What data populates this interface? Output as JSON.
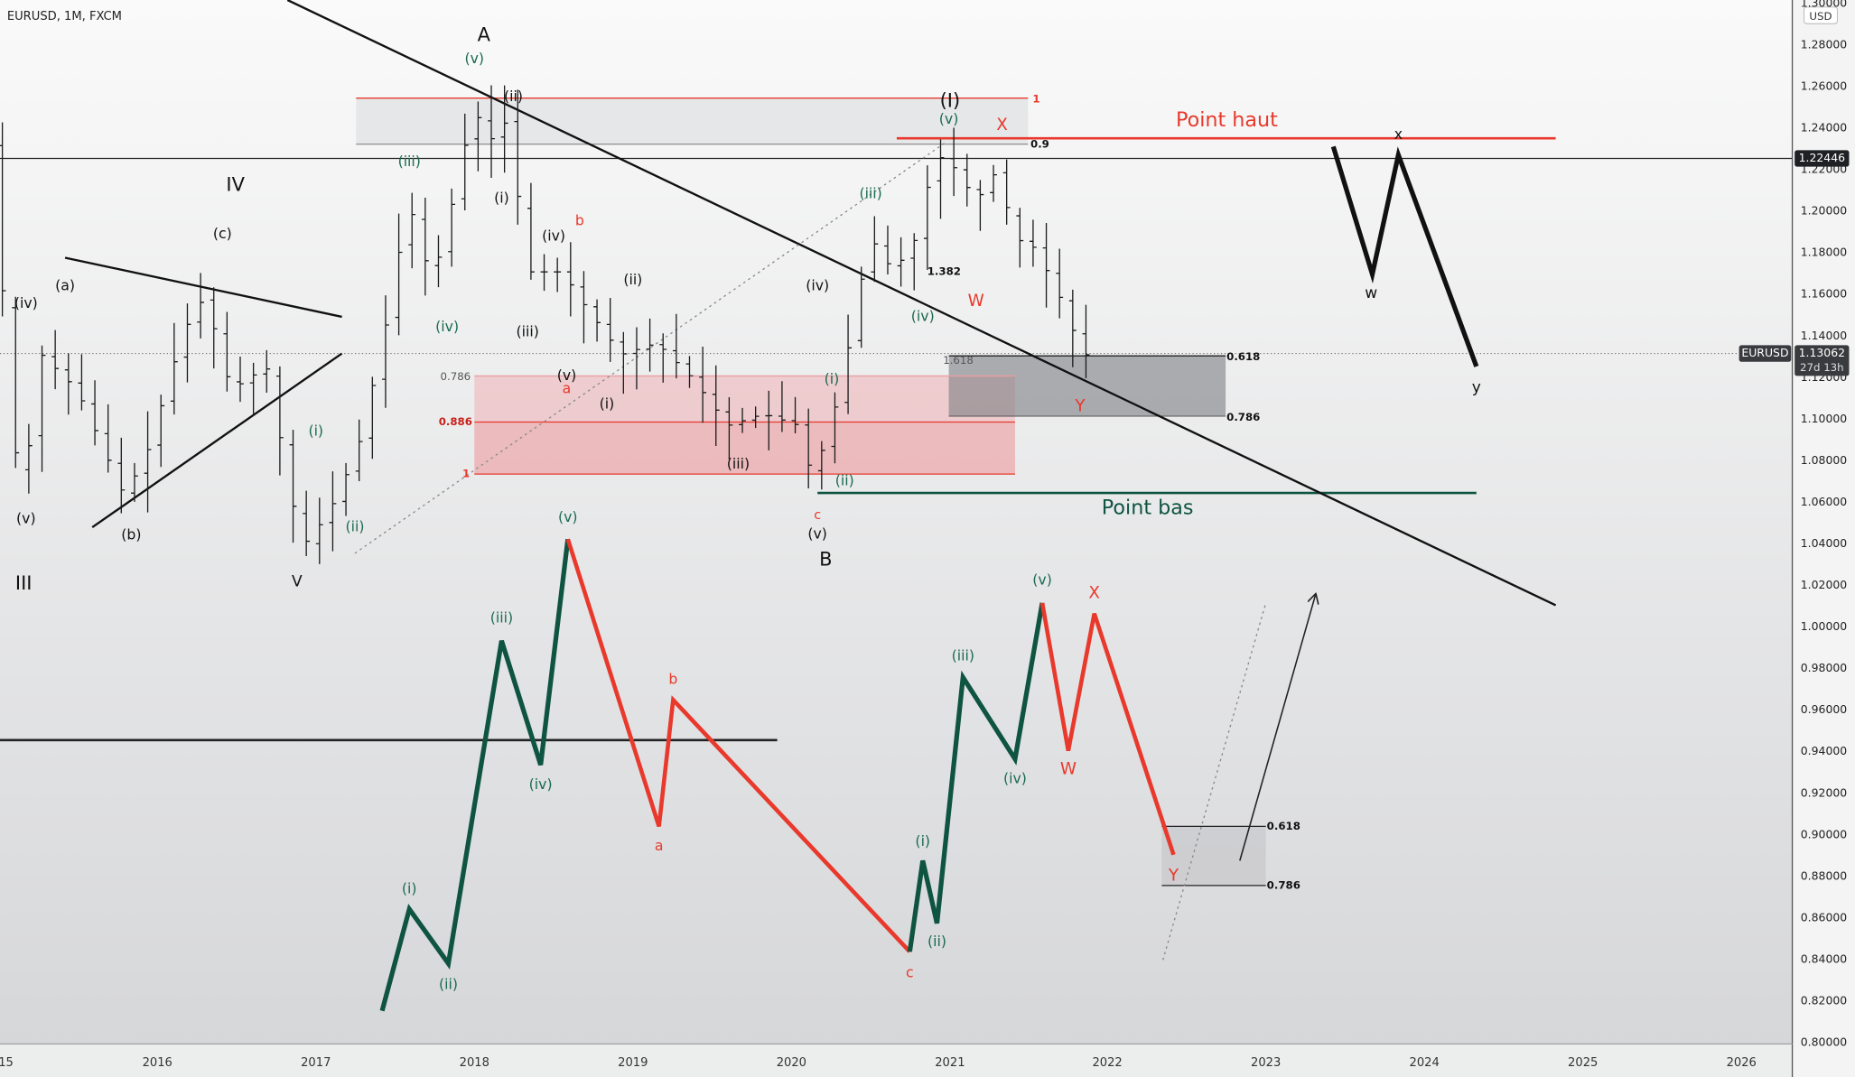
{
  "header": {
    "symbol": "EURUSD, 1M, FXCM"
  },
  "price_axis": {
    "currency": "USD",
    "labels": [
      "1.30000",
      "1.28000",
      "1.26000",
      "1.24000",
      "1.22000",
      "1.20000",
      "1.18000",
      "1.16000",
      "1.14000",
      "1.12000",
      "1.10000",
      "1.08000",
      "1.06000",
      "1.04000",
      "1.02000",
      "1.00000",
      "0.98000",
      "0.96000",
      "0.94000",
      "0.92000",
      "0.90000",
      "0.88000",
      "0.86000",
      "0.84000",
      "0.82000",
      "0.80000"
    ]
  },
  "time_axis": {
    "labels": [
      "15",
      "2016",
      "2017",
      "2018",
      "2019",
      "2020",
      "2021",
      "2022",
      "2023",
      "2024",
      "2025",
      "2026"
    ]
  },
  "price_tags": {
    "last_price": "1.22446",
    "symbol": "EURUSD",
    "current_price": "1.13062",
    "countdown": "27d 13h"
  },
  "annotations": [
    "A",
    "(v)",
    "(ii)",
    "(iii)",
    "(i)",
    "IV",
    "(c)",
    "(a)",
    "(iv)",
    "(b)",
    "(v)",
    "III",
    "V",
    "(i)",
    "(ii)",
    "(iv)",
    "(iii)",
    "(iv)",
    "b",
    "(ii)",
    "(v)",
    "a",
    "(i)",
    "0.786",
    "0.886",
    "1",
    "(iii)",
    "(iv)",
    "(i)",
    "(ii)",
    "c",
    "(v)",
    "B",
    "(I)",
    "(v)",
    "X",
    "1",
    "0.9",
    "Point haut",
    "(iii)",
    "1.382",
    "W",
    "(iv)",
    "1.618",
    "Y",
    "0.618",
    "0.786",
    "Point bas",
    "x",
    "w",
    "y",
    "(v)",
    "(iii)",
    "(iv)",
    "(i)",
    "(ii)",
    "b",
    "a",
    "c",
    "(i)",
    "(ii)",
    "(iii)",
    "(iv)",
    "(v)",
    "X",
    "W",
    "Y",
    "0.618",
    "0.786"
  ]
}
